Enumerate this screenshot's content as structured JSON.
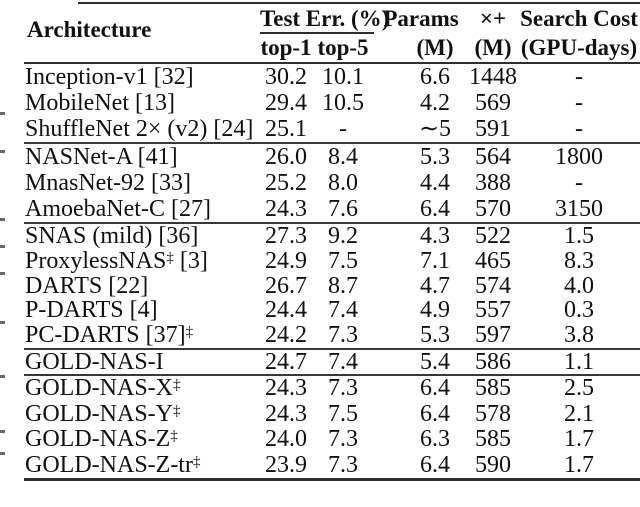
{
  "table": {
    "header": {
      "architecture": "Architecture",
      "test_err_group": "Test Err. (%)",
      "top1": "top-1",
      "top5": "top-5",
      "params": "Params",
      "params_unit": "(M)",
      "multadds": "×+",
      "multadds_unit": "(M)",
      "search_cost": "Search Cost",
      "search_cost_unit": "(GPU-days)"
    },
    "groups": [
      {
        "id": "manual",
        "rows": [
          {
            "name": "Inception-v1 [32]",
            "sup": "",
            "suffix": "",
            "top1": "30.2",
            "top5": "10.1",
            "params": "6.6",
            "multadds": "1448",
            "cost": "-"
          },
          {
            "name": "MobileNet [13]",
            "sup": "",
            "suffix": "",
            "top1": "29.4",
            "top5": "10.5",
            "params": "4.2",
            "multadds": "569",
            "cost": "-"
          },
          {
            "name": "ShuffleNet 2× (v2) [24]",
            "sup": "",
            "suffix": "",
            "top1": "25.1",
            "top5": "-",
            "params": "∼5",
            "multadds": "591",
            "cost": "-"
          }
        ]
      },
      {
        "id": "nas-heavy",
        "rows": [
          {
            "name": "NASNet-A [41]",
            "sup": "",
            "suffix": "",
            "top1": "26.0",
            "top5": "8.4",
            "params": "5.3",
            "multadds": "564",
            "cost": "1800"
          },
          {
            "name": "MnasNet-92 [33]",
            "sup": "",
            "suffix": "",
            "top1": "25.2",
            "top5": "8.0",
            "params": "4.4",
            "multadds": "388",
            "cost": "-"
          },
          {
            "name": "AmoebaNet-C [27]",
            "sup": "",
            "suffix": "",
            "top1": "24.3",
            "top5": "7.6",
            "params": "6.4",
            "multadds": "570",
            "cost": "3150"
          }
        ]
      },
      {
        "id": "darts",
        "rows": [
          {
            "name": "SNAS (mild) [36]",
            "sup": "",
            "suffix": "",
            "top1": "27.3",
            "top5": "9.2",
            "params": "4.3",
            "multadds": "522",
            "cost": "1.5"
          },
          {
            "name": "ProxylessNAS",
            "sup": "‡",
            "suffix": " [3]",
            "top1": "24.9",
            "top5": "7.5",
            "params": "7.1",
            "multadds": "465",
            "cost": "8.3"
          },
          {
            "name": "DARTS [22]",
            "sup": "",
            "suffix": "",
            "top1": "26.7",
            "top5": "8.7",
            "params": "4.7",
            "multadds": "574",
            "cost": "4.0"
          },
          {
            "name": "P-DARTS [4]",
            "sup": "",
            "suffix": "",
            "top1": "24.4",
            "top5": "7.4",
            "params": "4.9",
            "multadds": "557",
            "cost": "0.3"
          },
          {
            "name": "PC-DARTS [37]",
            "sup": "‡",
            "suffix": "",
            "top1": "24.2",
            "top5": "7.3",
            "params": "5.3",
            "multadds": "597",
            "cost": "3.8"
          }
        ]
      },
      {
        "id": "gold-i",
        "rows": [
          {
            "name": "GOLD-NAS-I",
            "sup": "",
            "suffix": "",
            "top1": "24.7",
            "top5": "7.4",
            "params": "5.4",
            "multadds": "586",
            "cost": "1.1"
          }
        ]
      },
      {
        "id": "gold",
        "rows": [
          {
            "name": "GOLD-NAS-X",
            "sup": "‡",
            "suffix": "",
            "top1": "24.3",
            "top5": "7.3",
            "params": "6.4",
            "multadds": "585",
            "cost": "2.5"
          },
          {
            "name": "GOLD-NAS-Y",
            "sup": "‡",
            "suffix": "",
            "top1": "24.3",
            "top5": "7.5",
            "params": "6.4",
            "multadds": "578",
            "cost": "2.1"
          },
          {
            "name": "GOLD-NAS-Z",
            "sup": "‡",
            "suffix": "",
            "top1": "24.0",
            "top5": "7.3",
            "params": "6.3",
            "multadds": "585",
            "cost": "1.7"
          },
          {
            "name": "GOLD-NAS-Z-tr",
            "sup": "‡",
            "suffix": "",
            "top1": "23.9",
            "top5": "7.3",
            "params": "6.4",
            "multadds": "590",
            "cost": "1.7"
          }
        ]
      }
    ]
  }
}
